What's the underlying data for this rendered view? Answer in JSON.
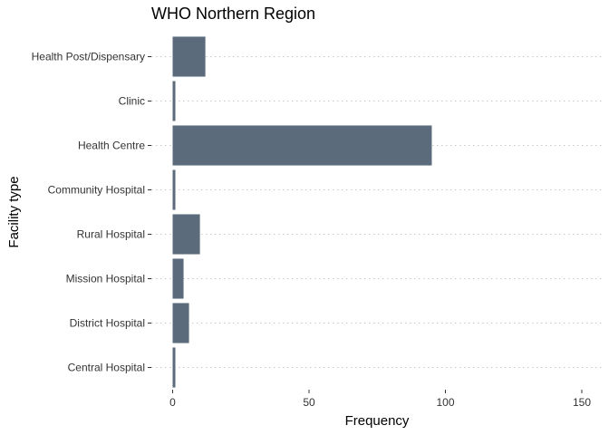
{
  "chart_data": {
    "type": "bar",
    "orientation": "horizontal",
    "title": "WHO Northern Region",
    "xlabel": "Frequency",
    "ylabel": "Facility type",
    "categories": [
      "Central Hospital",
      "District Hospital",
      "Mission Hospital",
      "Rural Hospital",
      "Community Hospital",
      "Health Centre",
      "Clinic",
      "Health Post/Dispensary"
    ],
    "values": [
      1,
      6,
      4,
      10,
      1,
      95,
      1,
      12
    ],
    "xlim": [
      0,
      155
    ],
    "xticks": [
      "0",
      "50",
      "100",
      "150"
    ],
    "bar_color": "#5b6b7c",
    "gridlines": "dotted horizontal",
    "legend": "none"
  }
}
